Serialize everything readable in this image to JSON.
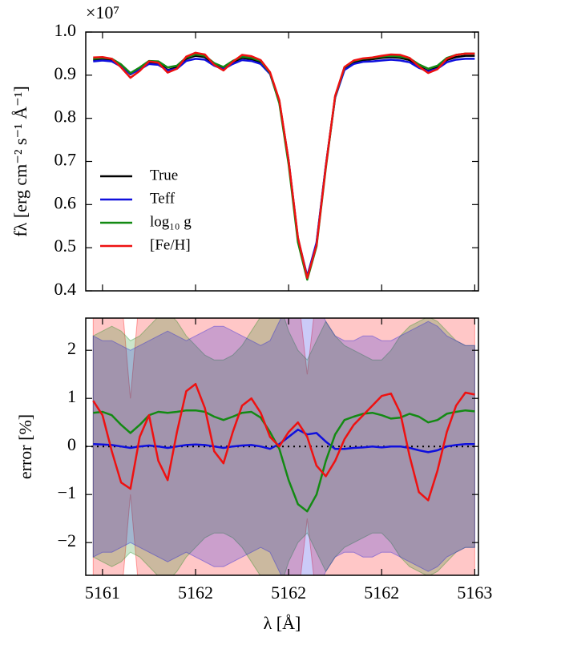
{
  "chart_data": [
    {
      "type": "line",
      "ylabel": "fλ  [erg cm⁻² s⁻¹ Å⁻¹]",
      "offset_text": "×10⁷",
      "x": [
        5160.95,
        5161,
        5161.05,
        5161.1,
        5161.15,
        5161.2,
        5161.25,
        5161.3,
        5161.35,
        5161.4,
        5161.45,
        5161.5,
        5161.55,
        5161.6,
        5161.65,
        5161.7,
        5161.75,
        5161.8,
        5161.85,
        5161.9,
        5161.95,
        5162,
        5162.05,
        5162.1,
        5162.15,
        5162.2,
        5162.25,
        5162.3,
        5162.35,
        5162.4,
        5162.45,
        5162.5,
        5162.55,
        5162.6,
        5162.65,
        5162.7,
        5162.75,
        5162.8,
        5162.85,
        5162.9,
        5162.95,
        5163
      ],
      "xlim": [
        5160.91,
        5163.02
      ],
      "xticks": [
        5161,
        {
          "value": 5161.5,
          "label": "5162"
        },
        {
          "value": 5162,
          "label": "5162"
        },
        {
          "value": 5162.5,
          "label": "5162"
        },
        5163
      ],
      "show_xtick_labels": false,
      "ylim": [
        0.4,
        1.0
      ],
      "yticks": [
        0.4,
        0.5,
        0.6,
        0.7,
        0.8,
        0.9,
        {
          "value": 1,
          "label": "1.0"
        }
      ],
      "legend": "lower left",
      "series": [
        {
          "name": "True",
          "color": "#000000",
          "values": [
            0.935,
            0.937,
            0.935,
            0.922,
            0.902,
            0.915,
            0.93,
            0.928,
            0.912,
            0.918,
            0.938,
            0.945,
            0.942,
            0.925,
            0.915,
            0.93,
            0.94,
            0.937,
            0.93,
            0.905,
            0.84,
            0.7,
            0.52,
            0.432,
            0.51,
            0.69,
            0.85,
            0.915,
            0.93,
            0.935,
            0.937,
            0.94,
            0.942,
            0.94,
            0.935,
            0.92,
            0.91,
            0.918,
            0.935,
            0.942,
            0.945,
            0.945
          ]
        },
        {
          "name": "Teff",
          "color": "#1010dd",
          "values": [
            0.932,
            0.934,
            0.932,
            0.92,
            0.903,
            0.913,
            0.926,
            0.924,
            0.911,
            0.915,
            0.933,
            0.938,
            0.936,
            0.922,
            0.914,
            0.926,
            0.935,
            0.933,
            0.926,
            0.903,
            0.838,
            0.702,
            0.522,
            0.434,
            0.512,
            0.69,
            0.848,
            0.912,
            0.926,
            0.931,
            0.932,
            0.934,
            0.936,
            0.934,
            0.93,
            0.917,
            0.909,
            0.915,
            0.93,
            0.936,
            0.938,
            0.938
          ]
        },
        {
          "name": "log₁₀ g",
          "color": "#138a13",
          "values": [
            0.938,
            0.94,
            0.938,
            0.925,
            0.905,
            0.918,
            0.933,
            0.932,
            0.918,
            0.922,
            0.941,
            0.948,
            0.945,
            0.928,
            0.919,
            0.933,
            0.943,
            0.94,
            0.933,
            0.905,
            0.835,
            0.693,
            0.513,
            0.426,
            0.503,
            0.685,
            0.85,
            0.918,
            0.933,
            0.938,
            0.94,
            0.943,
            0.945,
            0.943,
            0.939,
            0.925,
            0.915,
            0.922,
            0.94,
            0.947,
            0.95,
            0.95
          ]
        },
        {
          "name": "[Fe/H]",
          "color": "#ee1111",
          "values": [
            0.941,
            0.942,
            0.938,
            0.918,
            0.894,
            0.91,
            0.932,
            0.929,
            0.906,
            0.915,
            0.943,
            0.952,
            0.948,
            0.924,
            0.911,
            0.931,
            0.947,
            0.944,
            0.935,
            0.907,
            0.842,
            0.702,
            0.524,
            0.43,
            0.506,
            0.688,
            0.852,
            0.919,
            0.934,
            0.939,
            0.941,
            0.945,
            0.948,
            0.947,
            0.94,
            0.92,
            0.905,
            0.914,
            0.938,
            0.947,
            0.95,
            0.95
          ]
        }
      ]
    },
    {
      "type": "line",
      "ylabel": "error [%]",
      "xlabel": "λ [Å]",
      "x": [
        5160.95,
        5161,
        5161.05,
        5161.1,
        5161.15,
        5161.2,
        5161.25,
        5161.3,
        5161.35,
        5161.4,
        5161.45,
        5161.5,
        5161.55,
        5161.6,
        5161.65,
        5161.7,
        5161.75,
        5161.8,
        5161.85,
        5161.9,
        5161.95,
        5162,
        5162.05,
        5162.1,
        5162.15,
        5162.2,
        5162.25,
        5162.3,
        5162.35,
        5162.4,
        5162.45,
        5162.5,
        5162.55,
        5162.6,
        5162.65,
        5162.7,
        5162.75,
        5162.8,
        5162.85,
        5162.9,
        5162.95,
        5163
      ],
      "xlim": [
        5160.91,
        5163.02
      ],
      "xticks": [
        5161,
        {
          "value": 5161.5,
          "label": "5162"
        },
        {
          "value": 5162,
          "label": "5162"
        },
        {
          "value": 5162.5,
          "label": "5162"
        },
        5163
      ],
      "show_xtick_labels": true,
      "ylim": [
        -2.68,
        2.67
      ],
      "yticks": [
        {
          "value": -2,
          "label": "−2"
        },
        {
          "value": -1,
          "label": "−1"
        },
        0,
        1,
        2
      ],
      "hline": 0,
      "band_opacity": 0.22,
      "bands": [
        {
          "color": "#ff0000",
          "values": [
            3.2,
            3.2,
            3.2,
            3.2,
            1.0,
            3.2,
            3.2,
            3.2,
            3.2,
            3.2,
            3.2,
            3.2,
            3.2,
            3.2,
            3.2,
            3.2,
            3.2,
            3.2,
            3.2,
            3.2,
            3.2,
            3.2,
            3.2,
            1.5,
            3.2,
            3.2,
            3.2,
            3.2,
            3.2,
            3.2,
            3.2,
            3.2,
            3.2,
            3.2,
            3.2,
            3.2,
            3.2,
            3.2,
            3.2,
            3.2,
            3.2,
            3.2
          ]
        },
        {
          "color": "#138a13",
          "values": [
            2.3,
            2.4,
            2.5,
            2.4,
            2.2,
            2.3,
            2.5,
            2.7,
            2.8,
            2.6,
            2.3,
            2.1,
            1.9,
            1.8,
            1.8,
            1.9,
            2.1,
            2.4,
            2.7,
            3.0,
            3.0,
            2.4,
            2.0,
            1.8,
            2.2,
            2.6,
            2.3,
            2.1,
            2.0,
            1.9,
            1.8,
            1.8,
            2.0,
            2.3,
            2.5,
            2.6,
            2.7,
            2.6,
            2.4,
            2.2,
            2.1,
            2.1
          ]
        },
        {
          "color": "#1010dd",
          "values": [
            2.3,
            2.2,
            2.2,
            2.1,
            2.0,
            2.1,
            2.2,
            2.3,
            2.4,
            2.3,
            2.2,
            2.3,
            2.4,
            2.5,
            2.5,
            2.4,
            2.3,
            2.2,
            2.1,
            2.2,
            2.6,
            3.0,
            3.0,
            2.8,
            3.0,
            2.6,
            2.3,
            2.2,
            2.2,
            2.3,
            2.3,
            2.2,
            2.2,
            2.3,
            2.4,
            2.5,
            2.6,
            2.5,
            2.3,
            2.2,
            2.1,
            2.1
          ]
        }
      ],
      "series": [
        {
          "color": "#1010dd",
          "values": [
            0.05,
            0.04,
            0.03,
            0,
            -0.03,
            0,
            0.02,
            0,
            -0.03,
            0,
            0.03,
            0.04,
            0.03,
            0,
            -0.03,
            0,
            0.02,
            0.03,
            0,
            -0.05,
            0.05,
            0.2,
            0.35,
            0.25,
            0.28,
            0.1,
            -0.05,
            -0.05,
            -0.03,
            -0.02,
            0,
            -0.02,
            0,
            0,
            -0.03,
            -0.08,
            -0.12,
            -0.08,
            0,
            0.03,
            0.05,
            0.05
          ]
        },
        {
          "color": "#138a13",
          "values": [
            0.7,
            0.72,
            0.65,
            0.45,
            0.28,
            0.45,
            0.65,
            0.72,
            0.7,
            0.72,
            0.75,
            0.75,
            0.72,
            0.62,
            0.55,
            0.62,
            0.7,
            0.72,
            0.6,
            0.3,
            -0.05,
            -0.7,
            -1.2,
            -1.35,
            -1.0,
            -0.3,
            0.25,
            0.55,
            0.62,
            0.68,
            0.7,
            0.65,
            0.58,
            0.6,
            0.68,
            0.62,
            0.5,
            0.55,
            0.68,
            0.72,
            0.75,
            0.73
          ]
        },
        {
          "color": "#ee1111",
          "values": [
            0.95,
            0.65,
            -0.1,
            -0.75,
            -0.88,
            0.2,
            0.65,
            -0.3,
            -0.7,
            0.3,
            1.15,
            1.3,
            0.8,
            -0.1,
            -0.35,
            0.3,
            0.85,
            1.0,
            0.7,
            0.2,
            0.0,
            0.3,
            0.5,
            0.2,
            -0.4,
            -0.62,
            -0.3,
            0.15,
            0.45,
            0.65,
            0.85,
            1.05,
            1.1,
            0.7,
            -0.2,
            -0.95,
            -1.12,
            -0.5,
            0.3,
            0.85,
            1.12,
            1.08
          ]
        }
      ]
    }
  ]
}
